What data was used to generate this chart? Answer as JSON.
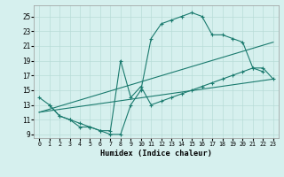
{
  "xlabel": "Humidex (Indice chaleur)",
  "bg_color": "#d6f0ee",
  "grid_color": "#b8dcd8",
  "line_color": "#1a7a6e",
  "xlim": [
    -0.5,
    23.5
  ],
  "ylim": [
    8.5,
    26.5
  ],
  "xticks": [
    0,
    1,
    2,
    3,
    4,
    5,
    6,
    7,
    8,
    9,
    10,
    11,
    12,
    13,
    14,
    15,
    16,
    17,
    18,
    19,
    20,
    21,
    22,
    23
  ],
  "yticks": [
    9,
    11,
    13,
    15,
    17,
    19,
    21,
    23,
    25
  ],
  "line1_x": [
    0,
    1,
    2,
    3,
    4,
    5,
    6,
    7,
    8,
    9,
    10,
    11,
    12,
    13,
    14,
    15,
    16,
    17,
    18,
    19,
    20,
    21,
    22
  ],
  "line1_y": [
    14,
    13,
    11.5,
    11,
    10,
    10,
    9.5,
    9,
    9,
    13,
    15,
    22,
    24,
    24.5,
    25,
    25.5,
    25,
    22.5,
    22.5,
    22,
    21.5,
    18,
    17.5
  ],
  "line2_x": [
    1,
    2,
    3,
    4,
    5,
    6,
    7,
    8,
    9,
    10,
    11,
    12,
    13,
    14,
    15,
    16,
    17,
    18,
    19,
    20,
    21,
    22,
    23
  ],
  "line2_y": [
    13,
    11.5,
    11,
    10.5,
    10,
    9.5,
    9.5,
    19,
    14,
    15.5,
    13,
    13.5,
    14,
    14.5,
    15,
    15.5,
    16,
    16.5,
    17,
    17.5,
    18,
    18,
    16.5
  ],
  "line3_x": [
    0,
    23
  ],
  "line3_y": [
    12,
    21.5
  ],
  "line4_x": [
    0,
    23
  ],
  "line4_y": [
    12,
    16.5
  ]
}
